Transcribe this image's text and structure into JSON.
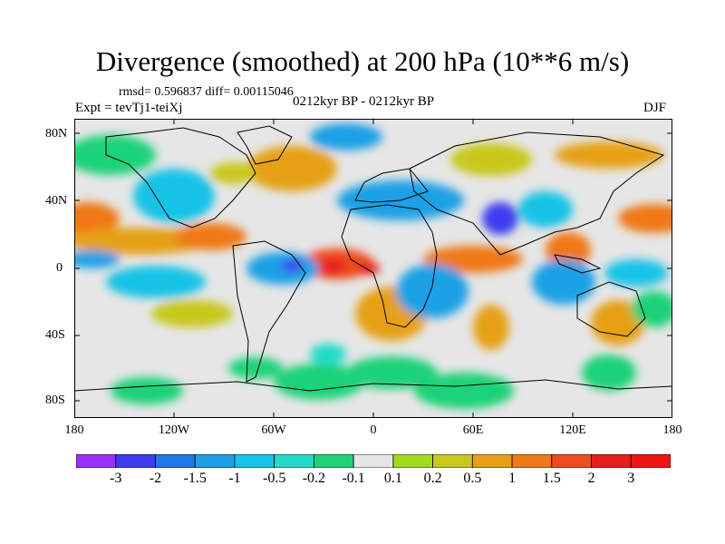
{
  "title": "Divergence (smoothed) at 200 hPa (10**6 m/s)",
  "stats": "rmsd= 0.596837 diff= 0.00115046",
  "experiment": "Expt = tevTj1-teiXj",
  "period": "0212kyr BP - 0212kyr BP",
  "season": "DJF",
  "lat_ticks": [
    "80N",
    "40N",
    "0",
    "40S",
    "80S"
  ],
  "lon_ticks": [
    "180",
    "120W",
    "60W",
    "0",
    "60E",
    "120E",
    "180"
  ],
  "colorbar": {
    "labels": [
      "-3",
      "-2",
      "-1.5",
      "-1",
      "-0.5",
      "-0.2",
      "-0.1",
      "0.1",
      "0.2",
      "0.5",
      "1",
      "1.5",
      "2",
      "3"
    ],
    "colors": [
      "#9b30ff",
      "#3c3cf0",
      "#1e78e6",
      "#1ea0e6",
      "#18c3e6",
      "#24dcc8",
      "#1ed278",
      "#e6e6e6",
      "#a0dc1e",
      "#c8c81e",
      "#e6a014",
      "#f07818",
      "#f04b1e",
      "#e61e1e",
      "#f01414"
    ]
  }
}
